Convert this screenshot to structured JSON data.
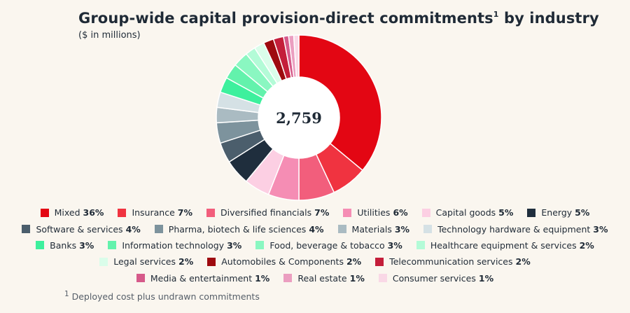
{
  "header": {
    "title": "Group-wide capital provision-direct commitments",
    "title_superscript": "1",
    "title_suffix": " by industry",
    "subtitle": "($ in millions)"
  },
  "footnote": {
    "marker": "1",
    "text": "Deployed cost plus undrawn commitments"
  },
  "chart_data": {
    "type": "pie",
    "title": "Group-wide capital provision-direct commitments by industry",
    "subtitle": "($ in millions)",
    "center_label": "2,759",
    "total": 2759,
    "unit": "%",
    "categories": [
      {
        "name": "Mixed",
        "value": 36,
        "label": "36%",
        "color": "#e30613"
      },
      {
        "name": "Insurance",
        "value": 7,
        "label": "7%",
        "color": "#f03340"
      },
      {
        "name": "Diversified financials",
        "value": 7,
        "label": "7%",
        "color": "#f25e7c"
      },
      {
        "name": "Utilities",
        "value": 6,
        "label": "6%",
        "color": "#f58db4"
      },
      {
        "name": "Capital goods",
        "value": 5,
        "label": "5%",
        "color": "#fccfe3"
      },
      {
        "name": "Energy",
        "value": 5,
        "label": "5%",
        "color": "#1f2e3d"
      },
      {
        "name": "Software & services",
        "value": 4,
        "label": "4%",
        "color": "#4b5e6c"
      },
      {
        "name": "Pharma, biotech & life sciences",
        "value": 4,
        "label": "4%",
        "color": "#7d939d"
      },
      {
        "name": "Materials",
        "value": 3,
        "label": "3%",
        "color": "#aabbc2"
      },
      {
        "name": "Technology hardware & equipment",
        "value": 3,
        "label": "3%",
        "color": "#d5e1e5"
      },
      {
        "name": "Banks",
        "value": 3,
        "label": "3%",
        "color": "#3df09d"
      },
      {
        "name": "Information technology",
        "value": 3,
        "label": "3%",
        "color": "#63f2ac"
      },
      {
        "name": "Food, beverage & tobacco",
        "value": 3,
        "label": "3%",
        "color": "#8af7c1"
      },
      {
        "name": "Healthcare equipment & services",
        "value": 2,
        "label": "2%",
        "color": "#b3fbd7"
      },
      {
        "name": "Legal services",
        "value": 2,
        "label": "2%",
        "color": "#dafdea"
      },
      {
        "name": "Automobiles & Components",
        "value": 2,
        "label": "2%",
        "color": "#9e0a0f"
      },
      {
        "name": "Telecommunication services",
        "value": 2,
        "label": "2%",
        "color": "#c41e3a"
      },
      {
        "name": "Media & entertainment",
        "value": 1,
        "label": "1%",
        "color": "#d65a8a"
      },
      {
        "name": "Real estate",
        "value": 1,
        "label": "1%",
        "color": "#eb9ec0"
      },
      {
        "name": "Consumer services",
        "value": 1,
        "label": "1%",
        "color": "#f9d8e6"
      }
    ],
    "legend_rows": [
      [
        0,
        1,
        2,
        3,
        4,
        5
      ],
      [
        6,
        7,
        8,
        9
      ],
      [
        10,
        11,
        12,
        13
      ],
      [
        14,
        15,
        16
      ],
      [
        17,
        18,
        19
      ]
    ]
  }
}
